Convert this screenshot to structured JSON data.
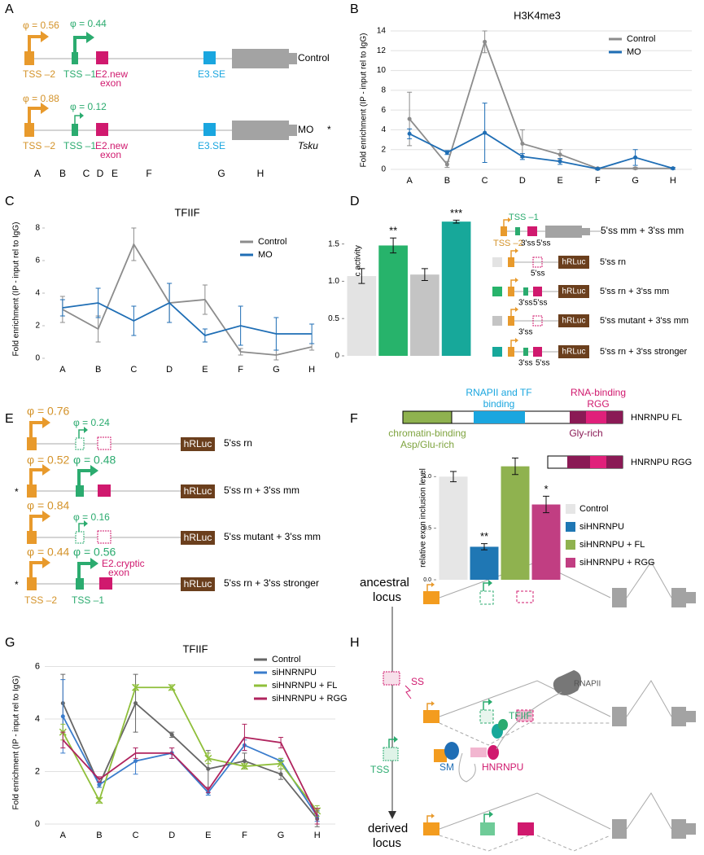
{
  "panel_letters": [
    "A",
    "B",
    "C",
    "D",
    "E",
    "F",
    "G",
    "H"
  ],
  "panel_a": {
    "rows": [
      {
        "phi_tss2": "φ = 0.56",
        "phi_tss1": "φ = 0.44",
        "name": "Control"
      },
      {
        "phi_tss2": "φ = 0.88",
        "phi_tss1": "φ = 0.12",
        "name": "MO",
        "mark": "*"
      }
    ],
    "tss2": "TSS –2",
    "tss1": "TSS –1",
    "e2": [
      "E2.new",
      "exon"
    ],
    "e3": "E3.SE",
    "gene": "Tsku",
    "positions": [
      "A",
      "B",
      "C",
      "D",
      "E",
      "F",
      "G",
      "H"
    ]
  },
  "panel_d_diagram": {
    "header": "5'ss mm + 3'ss mm",
    "tss1": "TSS –1",
    "tss2": "TSS –2",
    "ss3": "3'ss",
    "ss5": "5'ss",
    "reporter": "hRLuc"
  },
  "panel_e": {
    "rows": [
      {
        "phi_tss2": "φ = 0.76",
        "phi_tss1": "φ = 0.24",
        "name": "5'ss rn"
      },
      {
        "phi_tss2": "φ = 0.52",
        "phi_tss1": "φ = 0.48",
        "name": "5'ss rn + 3'ss mm",
        "mark": "*"
      },
      {
        "phi_tss2": "φ = 0.84",
        "phi_tss1": "φ = 0.16",
        "name": "5'ss mutant + 3'ss mm"
      },
      {
        "phi_tss2": "φ = 0.44",
        "phi_tss1": "φ = 0.56",
        "name": "5'ss rn + 3'ss stronger",
        "mark": "*"
      }
    ],
    "reporter": "hRLuc",
    "tss2": "TSS –2",
    "tss1": "TSS –1",
    "exon": [
      "E2.cryptic",
      "exon"
    ]
  },
  "panel_f_domains": {
    "tf": [
      "RNAPII and TF",
      "binding"
    ],
    "rna": [
      "RNA-binding",
      "RGG"
    ],
    "chromatin": [
      "chromatin-binding",
      "Asp/Glu-rich"
    ],
    "gly": "Gly-rich",
    "fl": "HNRNPU FL",
    "rgg": "HNRNPU RGG"
  },
  "panel_h": {
    "ancestral": [
      "ancestral",
      "locus"
    ],
    "derived": [
      "derived",
      "locus"
    ],
    "ss": "SS",
    "tss": "TSS",
    "tfiif": "TFIIF",
    "sm": "SM",
    "hnrnpu": "HNRNPU",
    "rnapii": "RNAPII"
  },
  "chart_data": [
    {
      "type": "line",
      "title": "H3K4me3",
      "y_label": "Fold enrichment (IP - input rel to IgG)",
      "categories": [
        "A",
        "B",
        "C",
        "D",
        "E",
        "F",
        "G",
        "H"
      ],
      "ylim": [
        0,
        14
      ],
      "yticks": [
        0,
        2,
        4,
        6,
        8,
        10,
        12,
        14
      ],
      "grid": true,
      "legend": "upper right",
      "series": [
        {
          "name": "Control",
          "color": "#8c8c8c",
          "marker": "circle",
          "values": [
            5.1,
            0.5,
            12.9,
            2.6,
            1.5,
            0.1,
            0.1,
            0.1
          ],
          "errors": [
            2.7,
            0.3,
            1.1,
            1.4,
            0.5,
            0.1,
            0.1,
            0.1
          ]
        },
        {
          "name": "MO",
          "color": "#1f6eb5",
          "marker": "circle",
          "values": [
            3.6,
            1.7,
            3.7,
            1.3,
            0.8,
            0.05,
            1.2,
            0.1
          ],
          "errors": [
            0.5,
            0.2,
            3.0,
            0.3,
            0.3,
            0.1,
            0.8,
            0.1
          ]
        }
      ]
    },
    {
      "type": "line",
      "title": "TFIIF",
      "y_label": "Fold enrichment (IP - input rel to IgG)",
      "categories": [
        "A",
        "B",
        "C",
        "D",
        "E",
        "F",
        "G",
        "H"
      ],
      "ylim": [
        0,
        8.5
      ],
      "yticks": [
        0,
        2,
        4,
        6,
        8
      ],
      "grid": false,
      "legend": "upper right",
      "series": [
        {
          "name": "Control",
          "color": "#8c8c8c",
          "marker": "none",
          "values": [
            3.0,
            1.8,
            7.0,
            3.4,
            3.6,
            0.4,
            0.2,
            0.7
          ],
          "errors": [
            0.8,
            0.8,
            1.0,
            1.2,
            0.9,
            0.2,
            0.3,
            0.2
          ]
        },
        {
          "name": "MO",
          "color": "#1f6eb5",
          "marker": "none",
          "values": [
            3.1,
            3.4,
            2.3,
            3.4,
            1.4,
            2.0,
            1.5,
            1.5
          ],
          "errors": [
            0.5,
            0.9,
            0.9,
            1.2,
            0.4,
            1.2,
            1.0,
            0.6
          ]
        }
      ]
    },
    {
      "type": "bar",
      "y_label": "hRLuc / ppLuc activity",
      "categories": [
        "5'ss rn",
        "5'ss rn + 3'ss mm",
        "5'ss mutant + 3'ss mm",
        "5'ss rn + 3'ss stronger"
      ],
      "values": [
        1.07,
        1.48,
        1.09,
        1.8
      ],
      "errors": [
        0.1,
        0.1,
        0.08,
        0.02
      ],
      "significance": [
        null,
        "**",
        null,
        "***"
      ],
      "colors": [
        "#e3e3e3",
        "#27b36b",
        "#c4c4c4",
        "#17a89a"
      ],
      "ylim": [
        0,
        1.9
      ],
      "yticks": [
        0,
        0.5,
        {
          "value": 1,
          "label": "1.0"
        },
        1.5
      ]
    },
    {
      "type": "bar",
      "y_label": "relative exon inclusion level",
      "categories": [
        "Control",
        "siHNRNPU",
        "siHNRNPU + FL",
        "siHNRNPU + RGG"
      ],
      "values": [
        1.0,
        0.32,
        1.1,
        0.73
      ],
      "errors": [
        0.05,
        0.03,
        0.08,
        0.08
      ],
      "significance": [
        null,
        "**",
        null,
        "*"
      ],
      "colors": [
        "#e6e6e6",
        "#1f77b4",
        "#8fb24f",
        "#c13e82"
      ],
      "ylim": [
        0,
        1.2
      ],
      "yticks": [
        {
          "value": 0,
          "label": "0.0"
        },
        0.5,
        {
          "value": 1,
          "label": "1.0"
        }
      ]
    },
    {
      "type": "line",
      "title": "TFIIF",
      "y_label": "Fold enrichment (IP - input rel to IgG)",
      "categories": [
        "A",
        "B",
        "C",
        "D",
        "E",
        "F",
        "G",
        "H"
      ],
      "ylim": [
        0,
        6.2
      ],
      "yticks": [
        0,
        2,
        4,
        6
      ],
      "grid": true,
      "legend": "upper right",
      "series": [
        {
          "name": "Control",
          "color": "#666666",
          "marker": "circle",
          "values": [
            4.6,
            1.5,
            4.6,
            3.4,
            2.1,
            2.4,
            1.9,
            0.2
          ],
          "errors": [
            1.1,
            0.1,
            1.1,
            0.1,
            0.7,
            0.3,
            0.2,
            0.3
          ]
        },
        {
          "name": "siHNRNPU",
          "color": "#3a7ccc",
          "marker": "circle",
          "values": [
            4.1,
            1.5,
            2.4,
            2.7,
            1.2,
            3.0,
            2.4,
            0.3
          ],
          "errors": [
            1.4,
            0.1,
            0.5,
            0.2,
            0.1,
            0.2,
            0.1,
            0.2
          ]
        },
        {
          "name": "siHNRNPU + FL",
          "color": "#8fbf3a",
          "marker": "x",
          "values": [
            3.5,
            0.9,
            5.2,
            5.2,
            2.5,
            2.2,
            2.3,
            0.5
          ],
          "errors": [
            0.3,
            0.1,
            0.1,
            0.1,
            0.2,
            0.1,
            0.2,
            0.2
          ]
        },
        {
          "name": "siHNRNPU + RGG",
          "color": "#b0245e",
          "marker": "none",
          "values": [
            3.2,
            1.7,
            2.7,
            2.7,
            1.3,
            3.3,
            3.1,
            0.3
          ],
          "errors": [
            0.3,
            0.1,
            0.2,
            0.2,
            0.1,
            0.5,
            0.2,
            0.3
          ]
        }
      ]
    }
  ]
}
